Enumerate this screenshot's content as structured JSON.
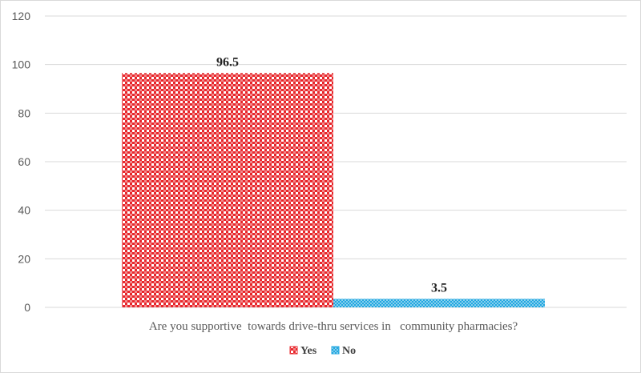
{
  "chart_data": {
    "type": "bar",
    "categories": [
      "Are you supportive  towards drive-thru services in   community pharmacies?"
    ],
    "series": [
      {
        "name": "Yes",
        "values": [
          96.5
        ],
        "color": "#e8262b",
        "pattern": "checker"
      },
      {
        "name": "No",
        "values": [
          3.5
        ],
        "color": "#22a7e0",
        "pattern": "dots"
      }
    ],
    "data_labels": [
      "96.5",
      "3.5"
    ],
    "ylim": [
      0,
      120
    ],
    "yticks": [
      0,
      20,
      40,
      60,
      80,
      100,
      120
    ],
    "grid": true,
    "legend_position": "bottom",
    "title": "",
    "xlabel": "",
    "ylabel": ""
  }
}
